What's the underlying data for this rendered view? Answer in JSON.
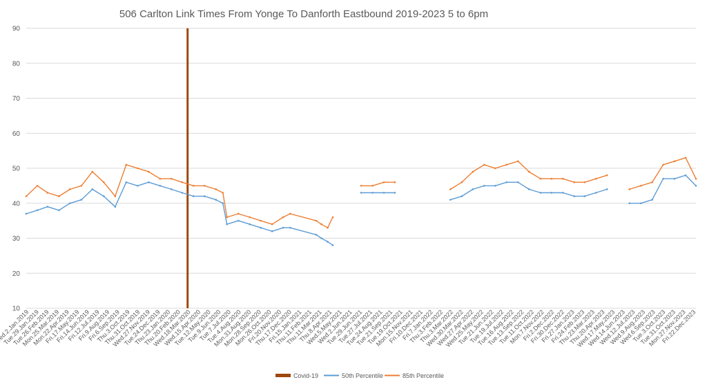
{
  "chart_data": {
    "type": "line",
    "title": "506 Carlton Link Times From Yonge To Danforth Eastbound 2019-2023 5 to 6pm",
    "xlabel": "",
    "ylabel": "",
    "ylim": [
      10,
      90
    ],
    "yticks": [
      10,
      20,
      30,
      40,
      50,
      60,
      70,
      80,
      90
    ],
    "grid": "horizontal",
    "legend_position": "bottom",
    "x_start": "2019-01-02",
    "x_end": "2023-12-29",
    "x_tick_labels": [
      "Wed.2.Jan.2019",
      "Tue.29.Jan.2019",
      "Tue.26.Feb.2019",
      "Mon.25.Mar.2019",
      "Mon.22.Apr.2019",
      "Fri.17.May.2019",
      "Fri.14.Jun.2019",
      "Fri.12.Jul.2019",
      "Fri.9.Aug.2019",
      "Fri.6.Sep.2019",
      "Thu.3.Oct.2019",
      "Thu.31.Oct.2019",
      "Wed.27.Nov.2019",
      "Tue.24.Dec.2019",
      "Thu.23.Jan.2020",
      "Thu.20.Feb.2020",
      "Wed.18.Mar.2020",
      "Wed.15.Apr.2020",
      "Tue.12.May.2020",
      "Tue.9.Jun.2020",
      "Tue.7.Jul.2020",
      "Tue.4.Aug.2020",
      "Mon.31.Aug.2020",
      "Mon.28.Sep.2020",
      "Mon.26.Oct.2020",
      "Fri.20.Nov.2020",
      "Thu.17.Dec.2020",
      "Fri.15.Jan.2021",
      "Thu.11.Feb.2021",
      "Thu.11.Mar.2021",
      "Thu.8.Apr.2021",
      "Wed.5.May.2021",
      "Wed.2.Jun.2021",
      "Tue.29.Jun.2021",
      "Tue.27.Jul.2021",
      "Tue.24.Aug.2021",
      "Tue.21.Sep.2021",
      "Tue.19.Oct.2021",
      "Mon.15.Nov.2021",
      "Fri.10.Dec.2021",
      "Fri.7.Jan.2022",
      "Thu.3.Feb.2022",
      "Thu.3.Mar.2022",
      "Wed.30.Mar.2022",
      "Wed.27.Apr.2022",
      "Wed.25.May.2022",
      "Tue.21.Jun.2022",
      "Tue.19.Jul.2022",
      "Tue.16.Aug.2022",
      "Tue.13.Sep.2022",
      "Tue.11.Oct.2022",
      "Mon.7.Nov.2022",
      "Fri.2.Dec.2022",
      "Fri.30.Dec.2022",
      "Fri.27.Jan.2023",
      "Fri.24.Feb.2023",
      "Thu.23.Mar.2023",
      "Thu.20.Apr.2023",
      "Wed.17.May.2023",
      "Wed.14.Jun.2023",
      "Wed.12.Jul.2023",
      "Wed.9.Aug.2023",
      "Wed.6.Sep.2023",
      "Tue.3.Oct.2023",
      "Tue.31.Oct.2023",
      "Mon.27.Nov.2023",
      "Fri.22.Dec.2023"
    ],
    "series": [
      {
        "name": "Covid-19",
        "mark": "bar",
        "color": "#9e480e",
        "x": [
          "2020-03-16"
        ],
        "values": [
          90
        ]
      },
      {
        "name": "50th Percentile",
        "mark": "line",
        "color": "#5b9bd5",
        "x": [
          "2019-01-02",
          "2019-02-01",
          "2019-03-01",
          "2019-04-01",
          "2019-05-01",
          "2019-06-01",
          "2019-07-01",
          "2019-08-01",
          "2019-09-01",
          "2019-10-01",
          "2019-11-01",
          "2019-12-01",
          "2020-01-01",
          "2020-02-01",
          "2020-03-01",
          "2020-04-01",
          "2020-05-01",
          "2020-06-01",
          "2020-06-20",
          "2020-07-01",
          "2020-08-01",
          "2020-09-01",
          "2020-10-01",
          "2020-11-01",
          "2020-12-01",
          "2020-12-20",
          "2021-03-01",
          "2021-03-15",
          "2021-04-01",
          "2021-04-15",
          "2021-05-01",
          "2021-05-20",
          "2021-07-01",
          "2021-08-01",
          "2021-09-01",
          "2021-10-01",
          "2021-11-01",
          "2022-03-01",
          "2022-04-01",
          "2022-05-01",
          "2022-06-01",
          "2022-07-01",
          "2022-08-01",
          "2022-09-01",
          "2022-10-01",
          "2022-11-01",
          "2022-12-01",
          "2023-01-01",
          "2023-02-01",
          "2023-03-01",
          "2023-04-01",
          "2023-05-01",
          "2023-06-01",
          "2023-07-01",
          "2023-08-01",
          "2023-09-01",
          "2023-10-01",
          "2023-11-01",
          "2023-12-01",
          "2023-12-29"
        ],
        "values": [
          37,
          38,
          39,
          38,
          40,
          41,
          44,
          42,
          39,
          46,
          45,
          46,
          45,
          44,
          43,
          42,
          42,
          41,
          40,
          34,
          35,
          34,
          33,
          32,
          33,
          33,
          31,
          30,
          29,
          28,
          null,
          null,
          43,
          43,
          43,
          43,
          null,
          41,
          42,
          44,
          45,
          45,
          46,
          46,
          44,
          43,
          43,
          43,
          42,
          42,
          43,
          44,
          null,
          40,
          40,
          41,
          47,
          47,
          48,
          45
        ]
      },
      {
        "name": "85th Percentile",
        "mark": "line",
        "color": "#ed7d31",
        "x": [
          "2019-01-02",
          "2019-02-01",
          "2019-03-01",
          "2019-04-01",
          "2019-05-01",
          "2019-06-01",
          "2019-07-01",
          "2019-08-01",
          "2019-09-01",
          "2019-10-01",
          "2019-11-01",
          "2019-12-01",
          "2020-01-01",
          "2020-02-01",
          "2020-03-01",
          "2020-04-01",
          "2020-05-01",
          "2020-06-01",
          "2020-06-20",
          "2020-07-01",
          "2020-08-01",
          "2020-09-01",
          "2020-10-01",
          "2020-11-01",
          "2020-12-01",
          "2020-12-20",
          "2021-03-01",
          "2021-03-15",
          "2021-04-01",
          "2021-04-15",
          "2021-05-01",
          "2021-05-20",
          "2021-07-01",
          "2021-08-01",
          "2021-09-01",
          "2021-10-01",
          "2021-11-01",
          "2022-03-01",
          "2022-04-01",
          "2022-05-01",
          "2022-06-01",
          "2022-07-01",
          "2022-08-01",
          "2022-09-01",
          "2022-10-01",
          "2022-11-01",
          "2022-12-01",
          "2023-01-01",
          "2023-02-01",
          "2023-03-01",
          "2023-04-01",
          "2023-05-01",
          "2023-06-01",
          "2023-07-01",
          "2023-08-01",
          "2023-09-01",
          "2023-10-01",
          "2023-11-01",
          "2023-12-01",
          "2023-12-29"
        ],
        "values": [
          42,
          45,
          43,
          42,
          44,
          45,
          49,
          46,
          42,
          51,
          50,
          49,
          47,
          47,
          46,
          45,
          45,
          44,
          43,
          36,
          37,
          36,
          35,
          34,
          36,
          37,
          35,
          34,
          33,
          36,
          null,
          null,
          45,
          45,
          46,
          46,
          null,
          44,
          46,
          49,
          51,
          50,
          51,
          52,
          49,
          47,
          47,
          47,
          46,
          46,
          47,
          48,
          null,
          44,
          45,
          46,
          51,
          52,
          53,
          47
        ]
      }
    ]
  }
}
